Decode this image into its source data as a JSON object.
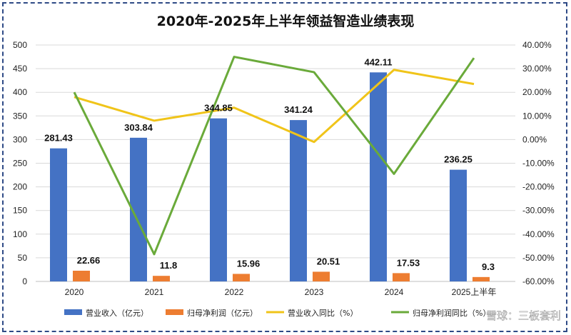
{
  "chart_data": {
    "type": "bar",
    "title": "2020年-2025年上半年领益智造业绩表现",
    "categories": [
      "2020",
      "2021",
      "2022",
      "2023",
      "2024",
      "2025上半年"
    ],
    "left_axis": {
      "min": 0,
      "max": 500,
      "step": 50
    },
    "right_axis": {
      "min": -60,
      "max": 40,
      "step": 10,
      "unit": "%"
    },
    "series": [
      {
        "name": "营业收入（亿元）",
        "type": "bar",
        "axis": "left",
        "color": "#4472c4",
        "values": [
          281.43,
          303.84,
          344.85,
          341.24,
          442.11,
          236.25
        ],
        "labels": [
          "281.43",
          "303.84",
          "344.85",
          "341.24",
          "442.11",
          "236.25"
        ]
      },
      {
        "name": "归母净利润（亿元）",
        "type": "bar",
        "axis": "left",
        "color": "#ed7d31",
        "values": [
          22.66,
          11.8,
          15.96,
          20.51,
          17.53,
          9.3
        ],
        "labels": [
          "22.66",
          "11.8",
          "15.96",
          "20.51",
          "17.53",
          "9.3"
        ]
      },
      {
        "name": "营业收入同比（%）",
        "type": "line",
        "axis": "right",
        "color": "#f0c419",
        "values": [
          18,
          8,
          13.5,
          -1,
          29.5,
          23.5
        ]
      },
      {
        "name": "归母净利润同比（%）",
        "type": "line",
        "axis": "right",
        "color": "#6aaa3a",
        "values": [
          20,
          -48.5,
          35,
          28.5,
          -14.5,
          34.5
        ]
      }
    ],
    "grid": true,
    "legend_position": "bottom"
  },
  "watermark": "雪球：三板套利"
}
